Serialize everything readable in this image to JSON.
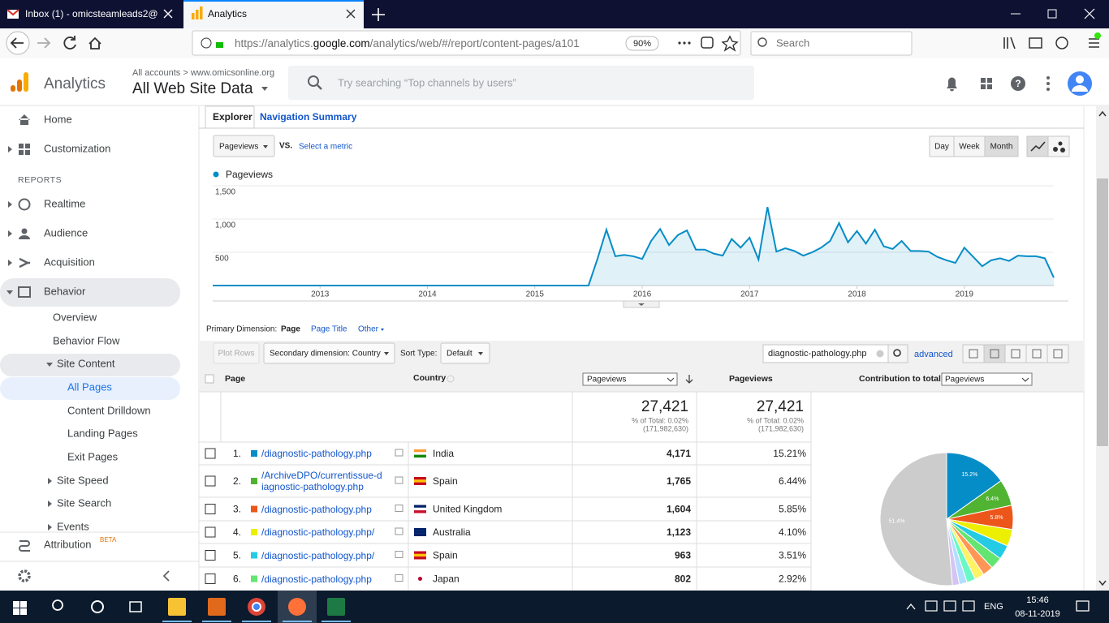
{
  "browser": {
    "tabs": [
      "Inbox (1) - omicsteamleads2@",
      "Analytics"
    ],
    "url": {
      "scheme": "https://analytics.",
      "domain": "google.com",
      "path": "/analytics/web/#/report/content-pages/a101"
    },
    "zoom": "90%",
    "search": "Search"
  },
  "header": {
    "product": "Analytics",
    "breadcrumb": "All accounts > www.omicsonline.org",
    "view": "All Web Site Data",
    "search_placeholder": "Try searching “Top channels by users”"
  },
  "sidebar": {
    "top": [
      "Home",
      "Customization"
    ],
    "section": "REPORTS",
    "reports": [
      "Realtime",
      "Audience",
      "Acquisition",
      "Behavior"
    ],
    "behavior": [
      "Overview",
      "Behavior Flow",
      "Site Content"
    ],
    "content": [
      "All Pages",
      "Content Drilldown",
      "Landing Pages",
      "Exit Pages"
    ],
    "more": [
      "Site Speed",
      "Site Search",
      "Events"
    ],
    "attribution": "Attribution",
    "badge": "BETA"
  },
  "explorer": {
    "tabs": [
      "Explorer",
      "Navigation Summary"
    ],
    "metric": "Pageviews",
    "vs": "VS.",
    "select_metric": "Select a metric",
    "periods": [
      "Day",
      "Week",
      "Month"
    ]
  },
  "chart_data": [
    {
      "type": "line",
      "series": [
        {
          "name": "Pageviews",
          "color": "#058dc7",
          "values": [
            0,
            0,
            0,
            0,
            0,
            0,
            0,
            0,
            0,
            0,
            0,
            0,
            0,
            0,
            0,
            0,
            0,
            0,
            0,
            0,
            0,
            0,
            0,
            0,
            0,
            0,
            0,
            0,
            0,
            0,
            0,
            0,
            0,
            0,
            0,
            0,
            0,
            0,
            0,
            0,
            0,
            0,
            0,
            400,
            840,
            440,
            460,
            440,
            400,
            670,
            850,
            610,
            760,
            830,
            540,
            540,
            480,
            450,
            700,
            570,
            720,
            390,
            1180,
            510,
            560,
            520,
            450,
            500,
            570,
            670,
            940,
            650,
            820,
            630,
            840,
            590,
            550,
            670,
            520,
            520,
            510,
            430,
            380,
            340,
            570,
            430,
            290,
            380,
            410,
            370,
            450,
            440,
            440,
            410,
            120
          ]
        }
      ],
      "xlim": [
        0,
        94
      ],
      "xticks": [
        {
          "value": 12,
          "label": "2013"
        },
        {
          "value": 24,
          "label": "2014"
        },
        {
          "value": 36,
          "label": "2015"
        },
        {
          "value": 48,
          "label": "2016"
        },
        {
          "value": 60,
          "label": "2017"
        },
        {
          "value": 72,
          "label": "2018"
        },
        {
          "value": 84,
          "label": "2019"
        }
      ],
      "ylim": [
        0,
        1500
      ],
      "yticks": [
        500,
        {
          "value": 1000,
          "label": "1,000"
        },
        {
          "value": 1500,
          "label": "1,500"
        }
      ],
      "grid": true
    },
    {
      "type": "pie",
      "values": [
        15.21,
        6.44,
        5.85,
        4.1,
        3.51,
        2.92,
        2.6,
        2.3,
        2.1,
        1.9,
        1.67,
        51.4
      ],
      "value_labels": [
        "15.2%",
        "6.4%",
        "5.8%",
        null,
        null,
        null,
        null,
        null,
        null,
        null,
        null,
        "51.4%"
      ],
      "colors": [
        "#058dc7",
        "#50b432",
        "#ed561b",
        "#edef00",
        "#24cbe5",
        "#64e572",
        "#ff9655",
        "#fff263",
        "#6af9c4",
        "#b2deff",
        "#d4c4f5",
        "#cccccc"
      ]
    }
  ],
  "dimensions": {
    "label": "Primary Dimension:",
    "options": [
      "Page",
      "Page Title",
      "Other"
    ]
  },
  "toolbar": {
    "plot_rows": "Plot Rows",
    "secondary": "Secondary dimension: Country",
    "sort_label": "Sort Type:",
    "sort": "Default",
    "filter": "diagnostic-pathology.php",
    "advanced": "advanced"
  },
  "table": {
    "headers": {
      "page": "Page",
      "country": "Country",
      "metric_select": "Pageviews",
      "metric": "Pageviews",
      "contribution": "Contribution to total:",
      "contribution_select": "Pageviews"
    },
    "totals": [
      {
        "value": "27,421",
        "percent": "% of Total: 0.02%",
        "overall": "(171,982,630)"
      },
      {
        "value": "27,421",
        "percent": "% of Total: 0.02%",
        "overall": "(171,982,630)"
      }
    ],
    "rows": [
      [
        "1.",
        "/diagnostic-pathology.php",
        "India",
        "4,171",
        "15.21%"
      ],
      [
        "2.",
        "/ArchiveDPO/currentissue-diagnostic-pathology.php",
        "Spain",
        "1,765",
        "6.44%"
      ],
      [
        "3.",
        "/diagnostic-pathology.php",
        "United Kingdom",
        "1,604",
        "5.85%"
      ],
      [
        "4.",
        "/diagnostic-pathology.php/",
        "Australia",
        "1,123",
        "4.10%"
      ],
      [
        "5.",
        "/diagnostic-pathology.php/",
        "Spain",
        "963",
        "3.51%"
      ],
      [
        "6.",
        "/diagnostic-pathology.php",
        "Japan",
        "802",
        "2.92%"
      ]
    ]
  },
  "taskbar": {
    "language": "ENG",
    "time": "15:46",
    "date": "08-11-2019"
  }
}
